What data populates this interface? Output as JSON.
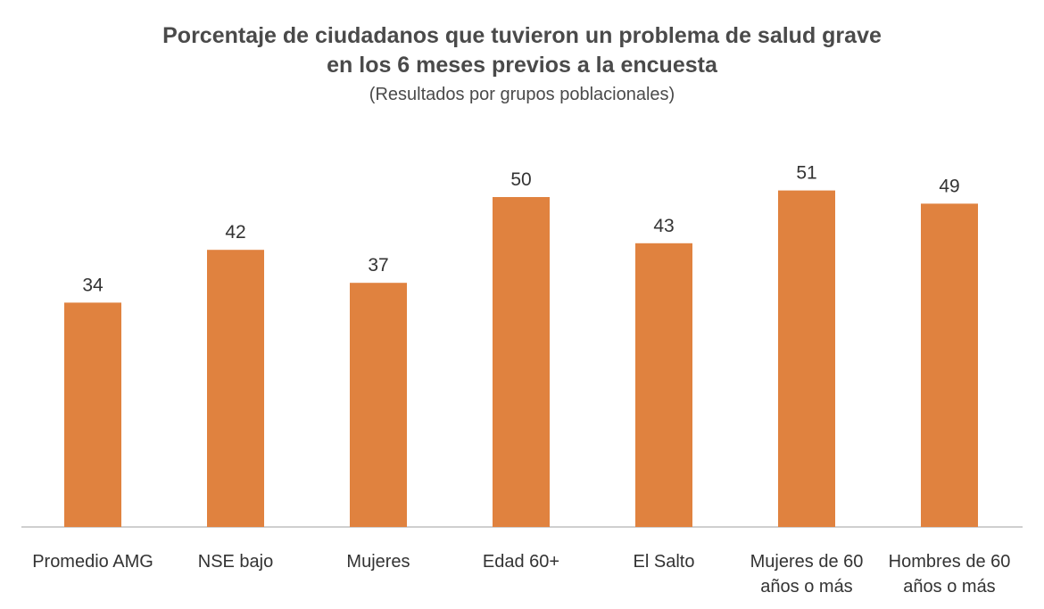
{
  "chart_data": {
    "type": "bar",
    "title_lines": [
      "Porcentaje de ciudadanos que tuvieron un problema de salud grave",
      "en los 6 meses previos a la encuesta"
    ],
    "subtitle": "(Resultados por grupos poblacionales)",
    "xlabel": "",
    "ylabel": "",
    "ylim": [
      0,
      60
    ],
    "grid": false,
    "legend": "none",
    "bar_color": "#e0823f",
    "categories": [
      [
        "Promedio AMG"
      ],
      [
        "NSE bajo"
      ],
      [
        "Mujeres"
      ],
      [
        "Edad 60+"
      ],
      [
        "El Salto"
      ],
      [
        "Mujeres de 60",
        "años o más"
      ],
      [
        "Hombres de 60",
        "años o más"
      ]
    ],
    "values": [
      34,
      42,
      37,
      50,
      43,
      51,
      49
    ]
  }
}
